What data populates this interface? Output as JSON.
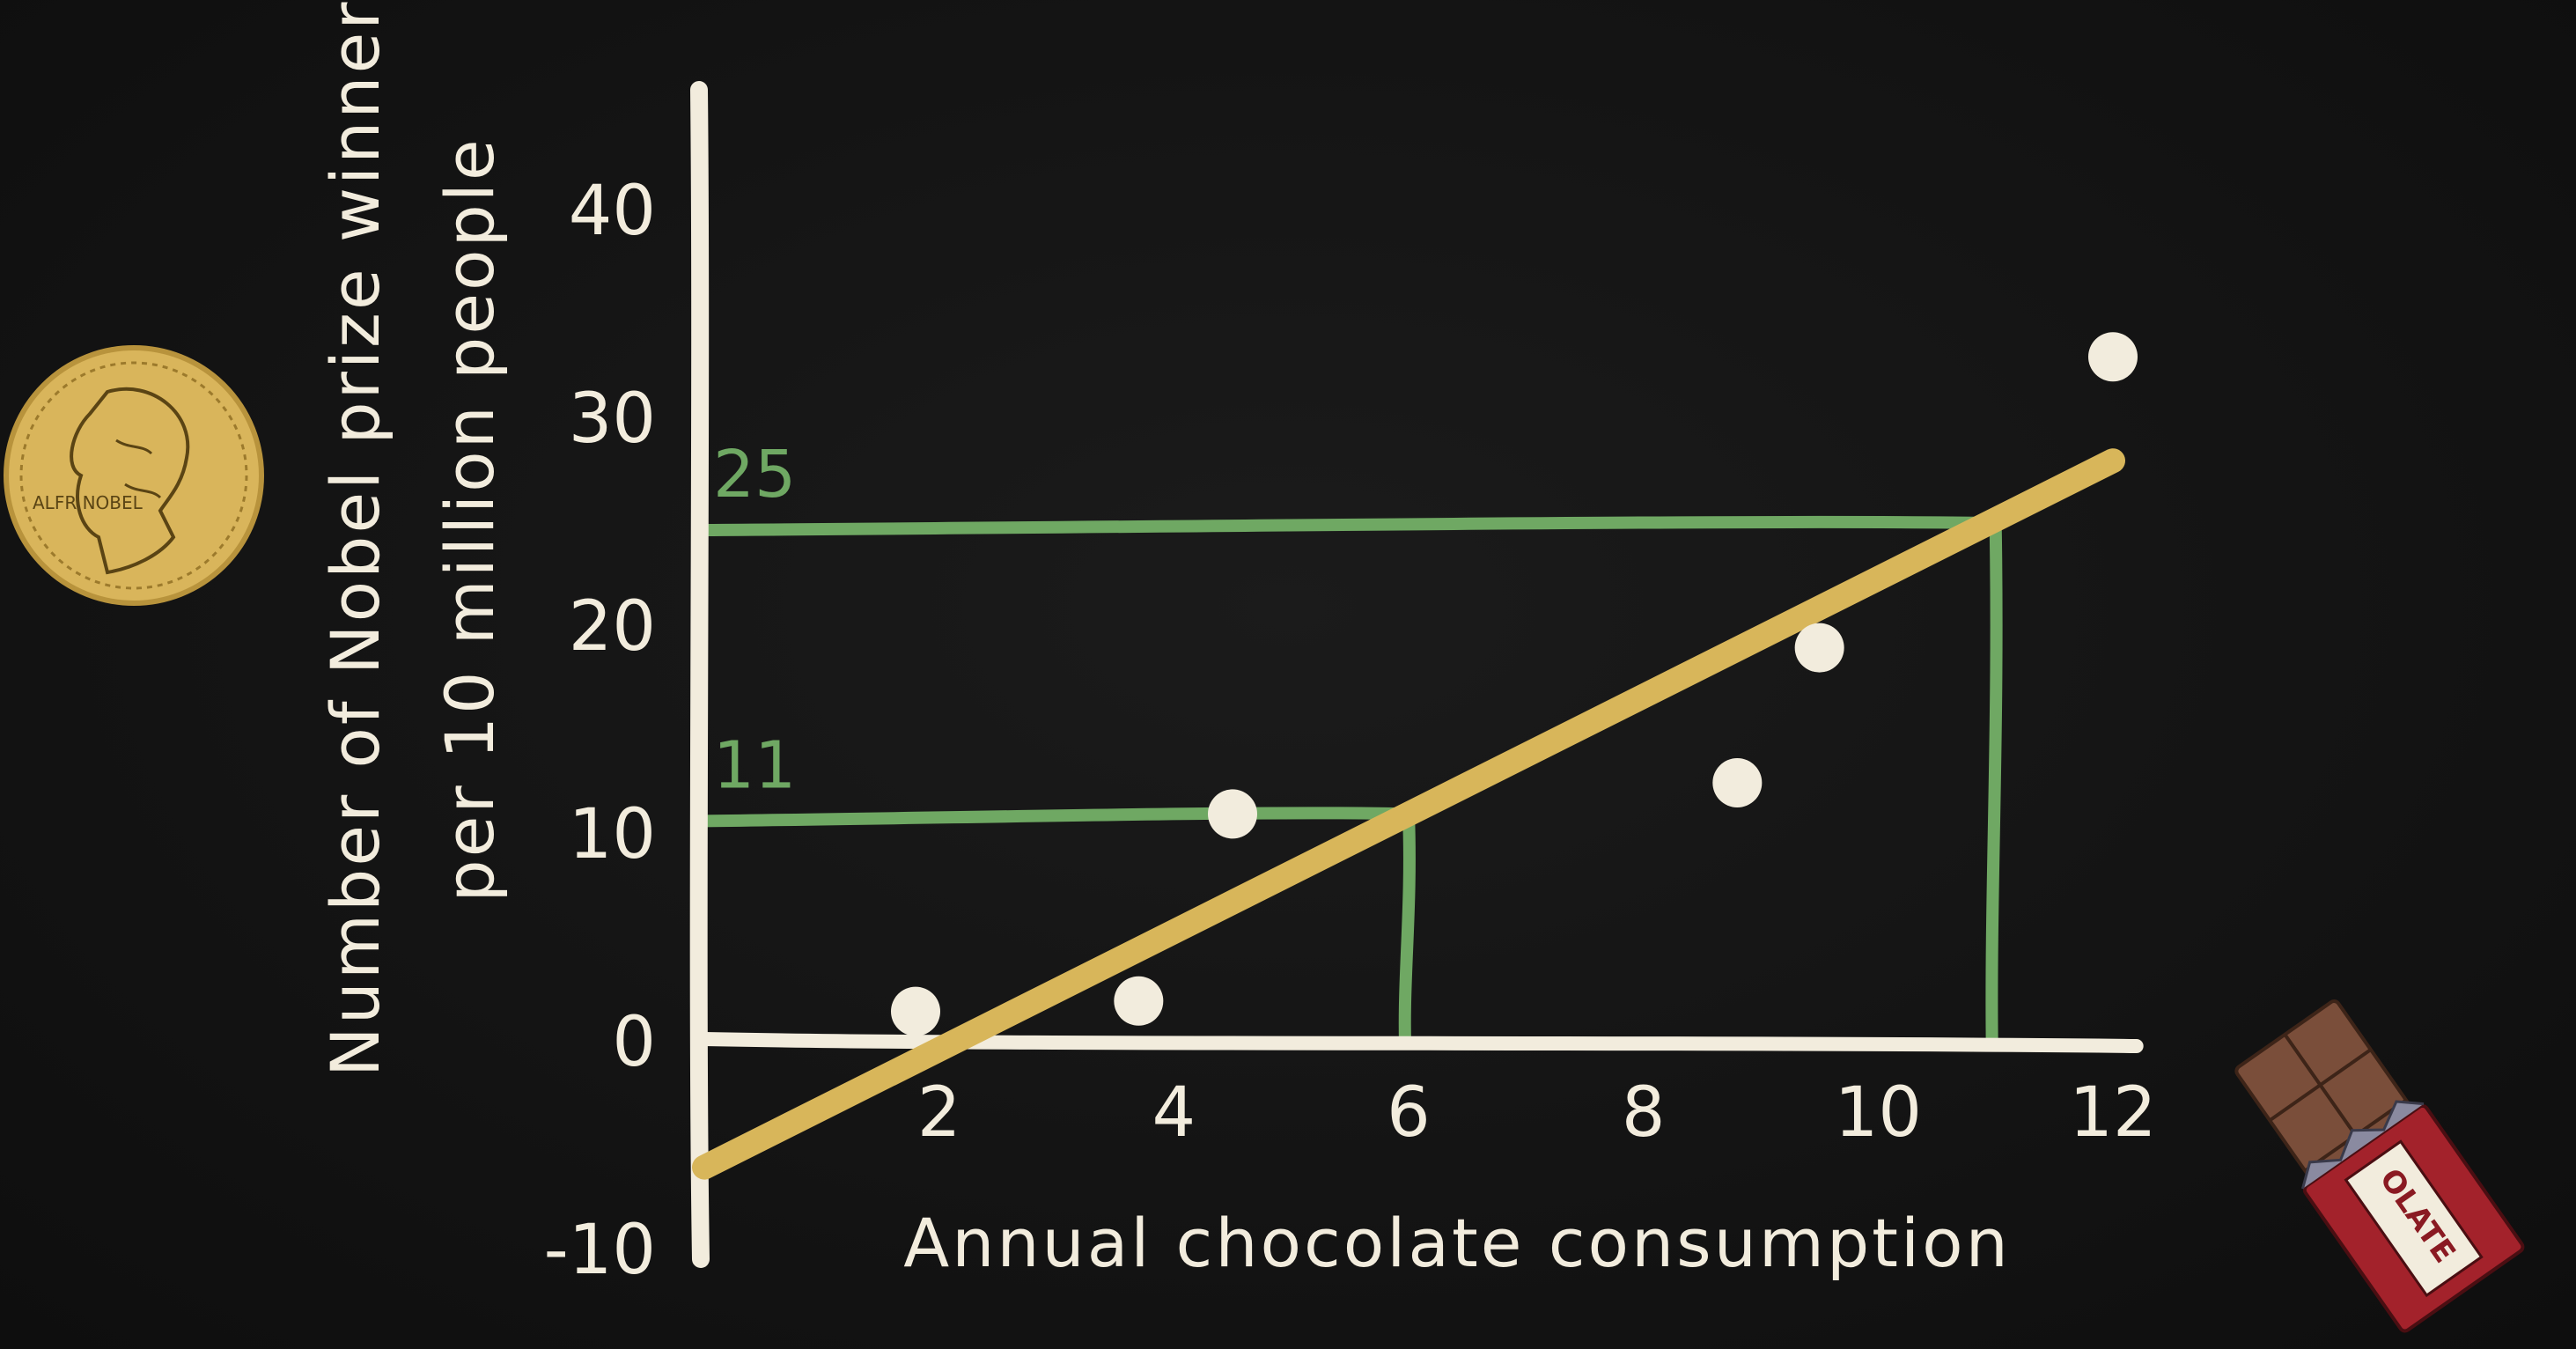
{
  "chart_data": {
    "type": "scatter",
    "xlabel": "Annual chocolate consumption",
    "ylabel_line1": "Number of Nobel prize winners",
    "ylabel_line2": "per 10 million people",
    "xlim": [
      0,
      12
    ],
    "ylim": [
      -10,
      45
    ],
    "x_ticks": [
      2,
      4,
      6,
      8,
      10,
      12
    ],
    "x_tick_labels": [
      "2",
      "4",
      "6",
      "8",
      "10",
      "12"
    ],
    "y_ticks": [
      40,
      30,
      20,
      10,
      0,
      -10
    ],
    "y_tick_labels": [
      "40",
      "30",
      "20",
      "10",
      "0",
      "-10"
    ],
    "points": [
      {
        "x": 1.8,
        "y": 1.5
      },
      {
        "x": 3.7,
        "y": 2.0
      },
      {
        "x": 4.5,
        "y": 11.0
      },
      {
        "x": 8.8,
        "y": 12.5
      },
      {
        "x": 9.5,
        "y": 19.0
      },
      {
        "x": 12.0,
        "y": 33.0
      }
    ],
    "trend_line": {
      "x_start": 0,
      "y_start": -6,
      "x_end": 12,
      "y_end": 28
    },
    "annotations": [
      {
        "x": 6,
        "y": 11,
        "label": "11"
      },
      {
        "x": 11,
        "y": 25,
        "label": "25"
      }
    ],
    "grid": false,
    "colors": {
      "background": "#121212",
      "axes": "#f2ecdd",
      "points": "#f2ecdd",
      "trend_line": "#d8b65a",
      "annotation": "#6fa863",
      "medal": "#d9b55b",
      "chocolate_wrapper": "#a3222b",
      "chocolate": "#7a4e3a"
    }
  },
  "decor": {
    "medal_icon": "nobel-medal",
    "medal_text": "ALFR NOBEL",
    "chocolate_icon": "chocolate-bar",
    "chocolate_text": "OLATE"
  }
}
